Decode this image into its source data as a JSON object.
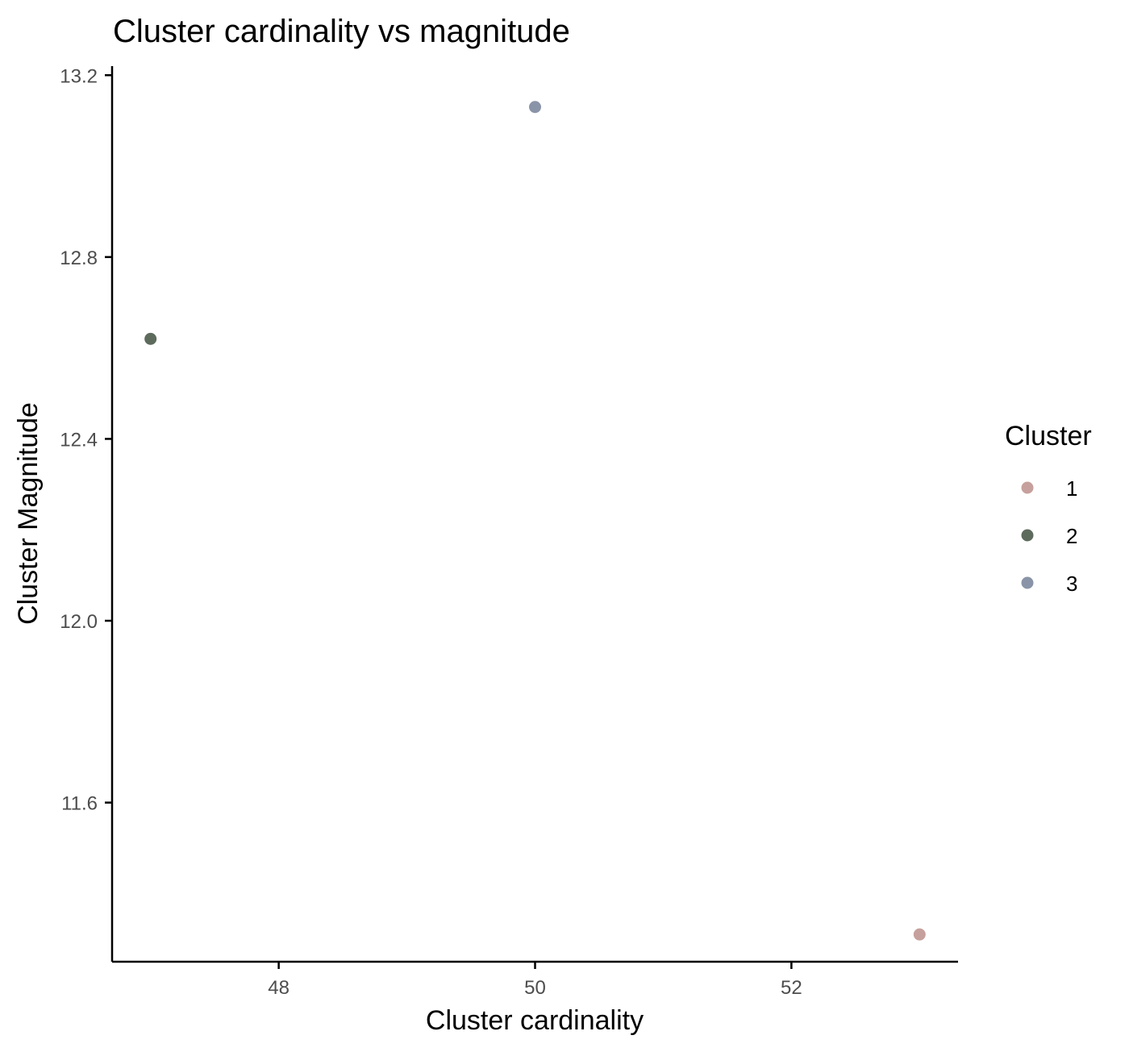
{
  "chart_data": {
    "type": "scatter",
    "title": "Cluster cardinality vs magnitude",
    "xlabel": "Cluster cardinality",
    "ylabel": "Cluster Magnitude",
    "xlim": [
      46.7,
      53.3
    ],
    "ylim": [
      11.25,
      13.22
    ],
    "x_ticks": [
      48,
      50,
      52
    ],
    "y_ticks": [
      11.6,
      12.0,
      12.4,
      12.8,
      13.2
    ],
    "y_tick_labels": [
      "11.6",
      "12.0",
      "12.4",
      "12.8",
      "13.2"
    ],
    "grid": false,
    "legend": {
      "title": "Cluster",
      "position": "right",
      "entries": [
        {
          "label": "1",
          "color": "#c6a09c"
        },
        {
          "label": "2",
          "color": "#5d6b5c"
        },
        {
          "label": "3",
          "color": "#8a94a8"
        }
      ]
    },
    "points": [
      {
        "cluster": "1",
        "x": 53,
        "y": 11.31
      },
      {
        "cluster": "2",
        "x": 47,
        "y": 12.62
      },
      {
        "cluster": "3",
        "x": 50,
        "y": 13.13
      }
    ]
  }
}
